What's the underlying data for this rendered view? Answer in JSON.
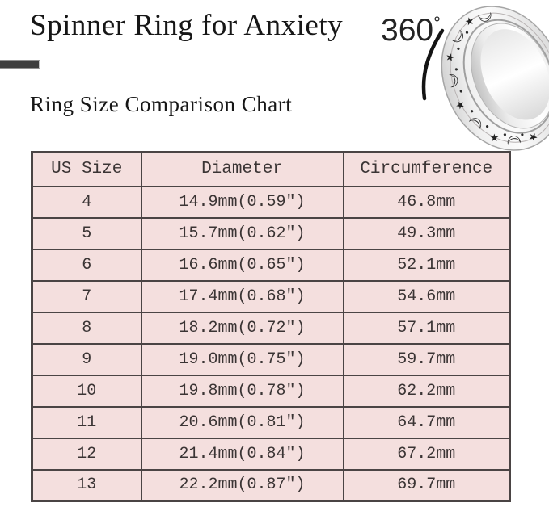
{
  "header": {
    "title": "Spinner Ring for Anxiety",
    "rotation_label": "360",
    "degree_symbol": "°",
    "subtitle": "Ring Size Comparison Chart"
  },
  "ring": {
    "name": "silver-spinner-ring-with-moon-and-star-engravings",
    "moon_glyph": "☽",
    "star_glyph": "★"
  },
  "colors": {
    "table_bg": "#f4dfde",
    "table_border": "#4a4444",
    "accent_bar": "#3e3e3e",
    "title_text": "#161616",
    "table_text": "#3a3434"
  },
  "chart_data": {
    "type": "table",
    "title": "Ring Size Comparison Chart",
    "columns": [
      "US Size",
      "Diameter",
      "Circumference"
    ],
    "rows": [
      [
        "4",
        "14.9mm(0.59″)",
        "46.8mm"
      ],
      [
        "5",
        "15.7mm(0.62″)",
        "49.3mm"
      ],
      [
        "6",
        "16.6mm(0.65″)",
        "52.1mm"
      ],
      [
        "7",
        "17.4mm(0.68″)",
        "54.6mm"
      ],
      [
        "8",
        "18.2mm(0.72″)",
        "57.1mm"
      ],
      [
        "9",
        "19.0mm(0.75″)",
        "59.7mm"
      ],
      [
        "10",
        "19.8mm(0.78″)",
        "62.2mm"
      ],
      [
        "11",
        "20.6mm(0.81″)",
        "64.7mm"
      ],
      [
        "12",
        "21.4mm(0.84″)",
        "67.2mm"
      ],
      [
        "13",
        "22.2mm(0.87″)",
        "69.7mm"
      ]
    ]
  }
}
